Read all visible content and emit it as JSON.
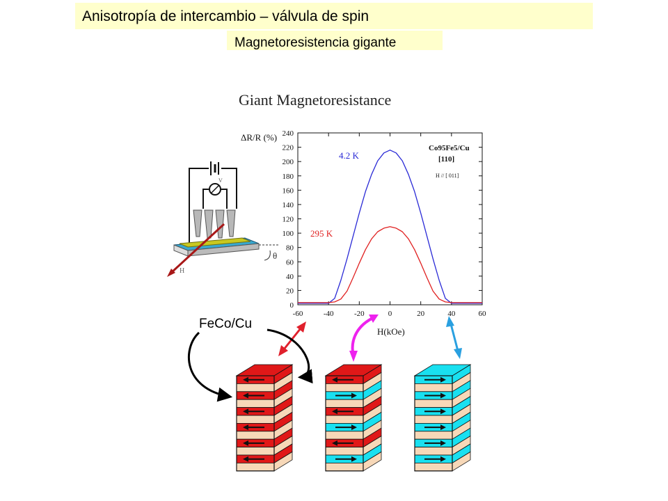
{
  "slide": {
    "title": "Anisotropía de intercambio – válvula de spin",
    "subtitle": "Magnetoresistencia gigante",
    "material_label": "FeCo/Cu"
  },
  "colors": {
    "banner": "#ffffcc",
    "curve_4K": "#2a2ad6",
    "curve_295K": "#e02020",
    "layer_antiparallel": "#e01818",
    "layer_parallel": "#19e0f0",
    "layer_spacer": "#f7d8b8",
    "arrow_left_state": "#e0202c",
    "arrow_mid_state": "#ee22ee",
    "arrow_right_state": "#2aa0e0",
    "curved_arrow": "#000000"
  },
  "icons": {
    "setup": "measurement-setup-illustration",
    "stacks": "multilayer-stack-icon",
    "state_arrows": "double-headed-arrow-icon",
    "cycle": "curved-arrow-icon"
  },
  "chart_data": {
    "type": "line",
    "title": "Giant Magnetoresistance",
    "xlabel": "H(kOe)",
    "ylabel": "ΔR/R (%)",
    "xlim": [
      -60,
      60
    ],
    "ylim": [
      0,
      240
    ],
    "x_ticks": [
      "-60",
      "-40",
      "-20",
      "0",
      "20",
      "40",
      "60"
    ],
    "y_ticks": [
      "0",
      "20",
      "40",
      "60",
      "80",
      "100",
      "120",
      "140",
      "160",
      "180",
      "200",
      "220",
      "240"
    ],
    "sample_label": "Co95Fe5/Cu",
    "orientation_label": "[110]",
    "field_direction_label": "H // [ 011]",
    "grid": false,
    "series": [
      {
        "name": "4.2 K",
        "x": [
          -60,
          -40,
          -36,
          -32,
          -28,
          -24,
          -20,
          -16,
          -12,
          -8,
          -4,
          0,
          4,
          8,
          12,
          16,
          20,
          24,
          28,
          32,
          36,
          40,
          60
        ],
        "y": [
          2,
          2,
          9,
          34,
          64,
          96,
          128,
          158,
          182,
          201,
          212,
          216,
          212,
          201,
          182,
          158,
          128,
          96,
          64,
          34,
          9,
          2,
          2
        ]
      },
      {
        "name": "295 K",
        "x": [
          -60,
          -40,
          -36,
          -32,
          -28,
          -24,
          -20,
          -16,
          -12,
          -8,
          -4,
          0,
          4,
          8,
          12,
          16,
          20,
          24,
          28,
          32,
          36,
          40,
          60
        ],
        "y": [
          3,
          3,
          4,
          8,
          19,
          38,
          58,
          77,
          92,
          102,
          107,
          109,
          107,
          102,
          92,
          77,
          58,
          38,
          19,
          8,
          4,
          3,
          3
        ]
      }
    ]
  },
  "stacks": [
    {
      "state": "antiparallel",
      "arrows": [
        "left",
        "left",
        "left",
        "left",
        "left",
        "left"
      ]
    },
    {
      "state": "intermediate",
      "arrows": [
        "left",
        "right",
        "left",
        "right",
        "left",
        "right"
      ]
    },
    {
      "state": "parallel",
      "arrows": [
        "right",
        "right",
        "right",
        "right",
        "right",
        "right"
      ]
    }
  ]
}
